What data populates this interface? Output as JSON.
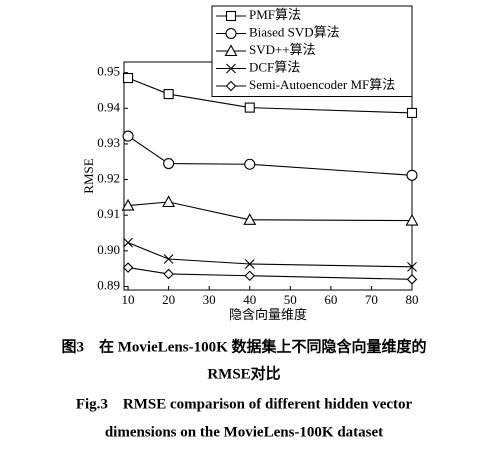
{
  "chart_data": {
    "type": "line",
    "x_label": "隐含向量维度",
    "y_label": "RMSE",
    "x": [
      10,
      20,
      40,
      80
    ],
    "series": [
      {
        "name": "PMF算法",
        "color": "#000000",
        "marker": "square",
        "values": [
          0.9485,
          0.944,
          0.9402,
          0.9387
        ]
      },
      {
        "name": "Biased SVD算法",
        "color": "#000000",
        "marker": "circle",
        "values": [
          0.9322,
          0.9245,
          0.9243,
          0.9212
        ]
      },
      {
        "name": "SVD++算法",
        "color": "#000000",
        "marker": "triangle",
        "values": [
          0.9127,
          0.9137,
          0.9087,
          0.9085
        ]
      },
      {
        "name": "DCF算法",
        "color": "#000000",
        "marker": "x",
        "values": [
          0.9023,
          0.8977,
          0.8963,
          0.8955
        ]
      },
      {
        "name": "Semi-Autoencoder MF算法",
        "color": "#000000",
        "marker": "diamond",
        "values": [
          0.8953,
          0.8935,
          0.893,
          0.892
        ]
      }
    ],
    "xlim": [
      9,
      80
    ],
    "xticks": [
      10,
      20,
      30,
      40,
      50,
      60,
      70,
      80
    ],
    "ylim": [
      0.889,
      0.953
    ],
    "yticks": [
      0.89,
      {
        "value": 0.9,
        "label": "0.90"
      },
      0.91,
      0.92,
      0.93,
      0.94,
      0.95
    ],
    "legend": "upper right",
    "grid": false
  },
  "caption": {
    "cn": "图3　在 MovieLens-100K 数据集上不同隐含向量维度的",
    "cn2": "RMSE对比",
    "en": "Fig.3　RMSE comparison of different hidden vector",
    "en2": "dimensions on the MovieLens-100K dataset"
  }
}
